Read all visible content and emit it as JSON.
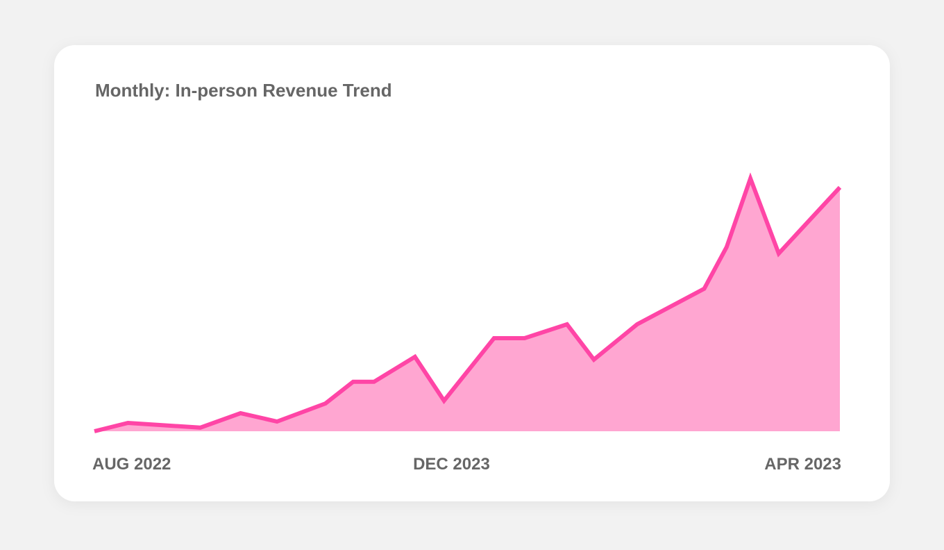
{
  "chart_data": {
    "type": "area",
    "title": "Monthly: In-person Revenue Trend",
    "x": [
      0,
      4.5,
      14.2,
      19.6,
      24.5,
      31.0,
      34.7,
      37.5,
      43.0,
      46.9,
      53.6,
      57.7,
      63.4,
      67.0,
      72.8,
      81.8,
      84.8,
      88.0,
      91.8,
      100
    ],
    "values": [
      0,
      3,
      1.3,
      6.5,
      3.5,
      10,
      17.8,
      17.8,
      26.8,
      11,
      33.5,
      33.5,
      38.5,
      25.8,
      38.5,
      51.3,
      66.3,
      91,
      64,
      87.8
    ],
    "xlim": [
      0,
      100
    ],
    "ylim": [
      0,
      100
    ],
    "xticks": [
      {
        "value": 0,
        "label": "AUG 2022"
      },
      {
        "value": 47.9,
        "label": "DEC 2023"
      },
      {
        "value": 100,
        "label": "APR 2023"
      }
    ],
    "color": "#ff45a6",
    "fill_color": "#ffa6d1"
  }
}
